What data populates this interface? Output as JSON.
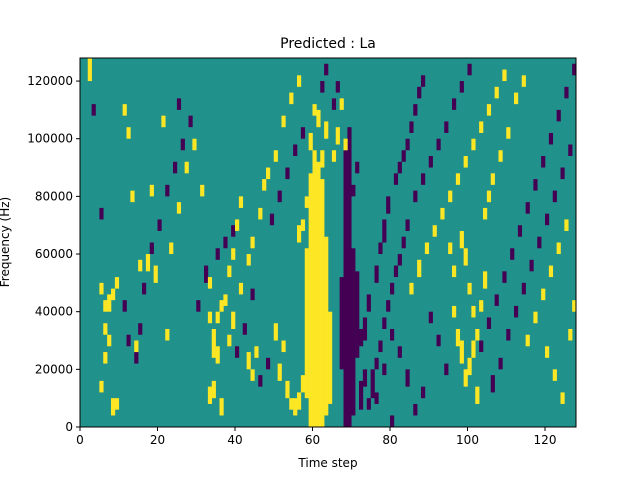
{
  "chart_data": {
    "type": "heatmap",
    "title": "Predicted : La",
    "xlabel": "Time step",
    "ylabel": "Frequency (Hz)",
    "xlim": [
      0,
      128
    ],
    "ylim": [
      0,
      128000
    ],
    "x_ticks": [
      "0",
      "20",
      "40",
      "60",
      "80",
      "100",
      "120"
    ],
    "x_tick_values": [
      0,
      20,
      40,
      60,
      80,
      100,
      120
    ],
    "y_ticks": [
      "0",
      "20000",
      "40000",
      "60000",
      "80000",
      "100000",
      "120000"
    ],
    "y_tick_values": [
      0,
      20000,
      40000,
      60000,
      80000,
      100000,
      120000
    ],
    "grid": false,
    "colormap": "viridis",
    "value_levels": [
      -1,
      0,
      1
    ],
    "colors": {
      "low": "#440154",
      "mid": "#21918c",
      "high": "#fde725"
    },
    "background_value": 0,
    "cell_height_hz": 2000,
    "high_cells": [
      [
        59,
        0,
        88
      ],
      [
        60,
        0,
        96
      ],
      [
        61,
        0,
        92
      ],
      [
        62,
        0,
        86
      ],
      [
        63,
        4,
        66
      ],
      [
        58,
        10,
        62
      ],
      [
        64,
        8,
        40
      ],
      [
        2,
        120,
        128
      ],
      [
        5,
        12,
        16
      ],
      [
        8,
        4,
        10
      ],
      [
        9,
        6,
        10
      ],
      [
        6,
        32,
        36
      ],
      [
        6,
        40,
        44
      ],
      [
        7,
        40,
        46
      ],
      [
        8,
        44,
        48
      ],
      [
        5,
        46,
        50
      ],
      [
        6,
        22,
        26
      ],
      [
        7,
        28,
        32
      ],
      [
        9,
        48,
        52
      ],
      [
        11,
        108,
        112
      ],
      [
        12,
        100,
        104
      ],
      [
        13,
        78,
        82
      ],
      [
        14,
        26,
        30
      ],
      [
        15,
        54,
        58
      ],
      [
        17,
        54,
        60
      ],
      [
        18,
        80,
        84
      ],
      [
        19,
        50,
        56
      ],
      [
        21,
        104,
        108
      ],
      [
        22,
        30,
        34
      ],
      [
        23,
        60,
        64
      ],
      [
        25,
        74,
        78
      ],
      [
        27,
        88,
        92
      ],
      [
        29,
        96,
        100
      ],
      [
        31,
        80,
        84
      ],
      [
        33,
        48,
        52
      ],
      [
        33,
        36,
        40
      ],
      [
        34,
        30,
        34
      ],
      [
        34,
        24,
        30
      ],
      [
        35,
        22,
        28
      ],
      [
        35,
        36,
        40
      ],
      [
        36,
        40,
        44
      ],
      [
        37,
        42,
        46
      ],
      [
        38,
        52,
        56
      ],
      [
        39,
        58,
        62
      ],
      [
        40,
        68,
        72
      ],
      [
        41,
        76,
        80
      ],
      [
        43,
        20,
        26
      ],
      [
        44,
        16,
        20
      ],
      [
        45,
        24,
        28
      ],
      [
        47,
        82,
        86
      ],
      [
        50,
        30,
        36
      ],
      [
        51,
        16,
        22
      ],
      [
        52,
        26,
        30
      ],
      [
        53,
        10,
        16
      ],
      [
        54,
        6,
        10
      ],
      [
        55,
        4,
        10
      ],
      [
        56,
        6,
        12
      ],
      [
        57,
        12,
        18
      ],
      [
        56,
        64,
        70
      ],
      [
        57,
        68,
        72
      ],
      [
        58,
        76,
        80
      ],
      [
        59,
        96,
        102
      ],
      [
        60,
        108,
        112
      ],
      [
        61,
        104,
        110
      ],
      [
        62,
        90,
        96
      ],
      [
        63,
        100,
        106
      ],
      [
        65,
        92,
        96
      ],
      [
        66,
        98,
        104
      ],
      [
        67,
        110,
        114
      ],
      [
        68,
        96,
        100
      ],
      [
        33,
        8,
        14
      ],
      [
        34,
        10,
        16
      ],
      [
        36,
        4,
        10
      ],
      [
        38,
        28,
        32
      ],
      [
        39,
        34,
        40
      ],
      [
        41,
        46,
        50
      ],
      [
        43,
        56,
        60
      ],
      [
        44,
        62,
        66
      ],
      [
        46,
        72,
        76
      ],
      [
        48,
        86,
        90
      ],
      [
        50,
        92,
        96
      ],
      [
        52,
        104,
        108
      ],
      [
        54,
        112,
        116
      ],
      [
        56,
        118,
        122
      ],
      [
        85,
        46,
        50
      ],
      [
        87,
        52,
        58
      ],
      [
        89,
        60,
        64
      ],
      [
        91,
        66,
        70
      ],
      [
        93,
        72,
        76
      ],
      [
        95,
        78,
        82
      ],
      [
        97,
        84,
        88
      ],
      [
        99,
        90,
        94
      ],
      [
        101,
        96,
        100
      ],
      [
        103,
        102,
        106
      ],
      [
        105,
        108,
        112
      ],
      [
        107,
        114,
        118
      ],
      [
        109,
        120,
        124
      ],
      [
        96,
        38,
        42
      ],
      [
        97,
        28,
        34
      ],
      [
        98,
        22,
        30
      ],
      [
        99,
        14,
        20
      ],
      [
        100,
        18,
        24
      ],
      [
        101,
        24,
        30
      ],
      [
        102,
        30,
        34
      ],
      [
        103,
        40,
        44
      ],
      [
        104,
        48,
        54
      ],
      [
        98,
        62,
        68
      ],
      [
        99,
        56,
        62
      ],
      [
        100,
        46,
        50
      ],
      [
        101,
        38,
        42
      ],
      [
        102,
        8,
        14
      ],
      [
        96,
        52,
        56
      ],
      [
        95,
        60,
        64
      ],
      [
        104,
        72,
        76
      ],
      [
        105,
        78,
        82
      ],
      [
        106,
        84,
        88
      ],
      [
        108,
        92,
        96
      ],
      [
        110,
        100,
        104
      ],
      [
        112,
        112,
        116
      ],
      [
        114,
        118,
        122
      ],
      [
        115,
        28,
        32
      ],
      [
        117,
        36,
        40
      ],
      [
        119,
        44,
        48
      ],
      [
        121,
        52,
        56
      ],
      [
        123,
        60,
        64
      ],
      [
        125,
        68,
        72
      ],
      [
        120,
        24,
        28
      ],
      [
        122,
        16,
        20
      ],
      [
        124,
        8,
        12
      ],
      [
        126,
        30,
        34
      ],
      [
        127,
        40,
        44
      ]
    ],
    "low_cells": [
      [
        68,
        0,
        96
      ],
      [
        69,
        0,
        104
      ],
      [
        70,
        4,
        62
      ],
      [
        67,
        20,
        52
      ],
      [
        71,
        24,
        54
      ],
      [
        72,
        6,
        16
      ],
      [
        73,
        30,
        38
      ],
      [
        74,
        40,
        46
      ],
      [
        75,
        10,
        20
      ],
      [
        76,
        50,
        56
      ],
      [
        77,
        60,
        64
      ],
      [
        78,
        64,
        72
      ],
      [
        79,
        74,
        80
      ],
      [
        80,
        0,
        4
      ],
      [
        81,
        84,
        88
      ],
      [
        82,
        88,
        92
      ],
      [
        83,
        92,
        96
      ],
      [
        84,
        96,
        100
      ],
      [
        85,
        102,
        106
      ],
      [
        86,
        108,
        112
      ],
      [
        87,
        114,
        118
      ],
      [
        88,
        118,
        122
      ],
      [
        3,
        108,
        112
      ],
      [
        5,
        72,
        76
      ],
      [
        11,
        40,
        44
      ],
      [
        12,
        28,
        32
      ],
      [
        14,
        22,
        26
      ],
      [
        15,
        32,
        36
      ],
      [
        16,
        46,
        50
      ],
      [
        18,
        60,
        64
      ],
      [
        20,
        68,
        72
      ],
      [
        22,
        80,
        84
      ],
      [
        24,
        88,
        92
      ],
      [
        25,
        110,
        114
      ],
      [
        26,
        96,
        100
      ],
      [
        28,
        104,
        108
      ],
      [
        30,
        40,
        44
      ],
      [
        32,
        50,
        56
      ],
      [
        35,
        58,
        62
      ],
      [
        37,
        62,
        66
      ],
      [
        39,
        66,
        70
      ],
      [
        40,
        24,
        28
      ],
      [
        42,
        32,
        36
      ],
      [
        44,
        44,
        48
      ],
      [
        46,
        14,
        18
      ],
      [
        48,
        20,
        24
      ],
      [
        49,
        70,
        74
      ],
      [
        51,
        78,
        82
      ],
      [
        53,
        86,
        90
      ],
      [
        55,
        94,
        98
      ],
      [
        57,
        100,
        104
      ],
      [
        62,
        116,
        120
      ],
      [
        63,
        122,
        126
      ],
      [
        65,
        110,
        114
      ],
      [
        66,
        116,
        120
      ],
      [
        70,
        80,
        84
      ],
      [
        71,
        88,
        92
      ],
      [
        72,
        28,
        34
      ],
      [
        73,
        14,
        20
      ],
      [
        74,
        6,
        10
      ],
      [
        76,
        20,
        24
      ],
      [
        77,
        26,
        30
      ],
      [
        78,
        34,
        38
      ],
      [
        79,
        40,
        44
      ],
      [
        80,
        46,
        50
      ],
      [
        81,
        52,
        56
      ],
      [
        82,
        56,
        60
      ],
      [
        83,
        62,
        66
      ],
      [
        84,
        68,
        72
      ],
      [
        86,
        78,
        82
      ],
      [
        88,
        84,
        88
      ],
      [
        90,
        90,
        94
      ],
      [
        92,
        96,
        100
      ],
      [
        94,
        102,
        106
      ],
      [
        96,
        110,
        114
      ],
      [
        98,
        116,
        120
      ],
      [
        100,
        122,
        126
      ],
      [
        103,
        26,
        30
      ],
      [
        105,
        34,
        38
      ],
      [
        107,
        42,
        46
      ],
      [
        109,
        50,
        54
      ],
      [
        111,
        58,
        62
      ],
      [
        113,
        66,
        70
      ],
      [
        115,
        74,
        78
      ],
      [
        117,
        82,
        86
      ],
      [
        119,
        90,
        94
      ],
      [
        121,
        98,
        102
      ],
      [
        123,
        106,
        110
      ],
      [
        125,
        114,
        118
      ],
      [
        127,
        122,
        126
      ],
      [
        106,
        12,
        18
      ],
      [
        108,
        20,
        24
      ],
      [
        110,
        30,
        34
      ],
      [
        112,
        38,
        42
      ],
      [
        114,
        46,
        50
      ],
      [
        116,
        54,
        58
      ],
      [
        118,
        62,
        66
      ],
      [
        120,
        70,
        74
      ],
      [
        122,
        78,
        82
      ],
      [
        124,
        86,
        90
      ],
      [
        126,
        94,
        98
      ],
      [
        94,
        18,
        22
      ],
      [
        92,
        28,
        32
      ],
      [
        90,
        36,
        40
      ],
      [
        88,
        10,
        14
      ],
      [
        86,
        4,
        8
      ],
      [
        84,
        14,
        20
      ],
      [
        82,
        24,
        28
      ],
      [
        80,
        30,
        34
      ],
      [
        78,
        18,
        22
      ],
      [
        76,
        8,
        12
      ]
    ]
  }
}
